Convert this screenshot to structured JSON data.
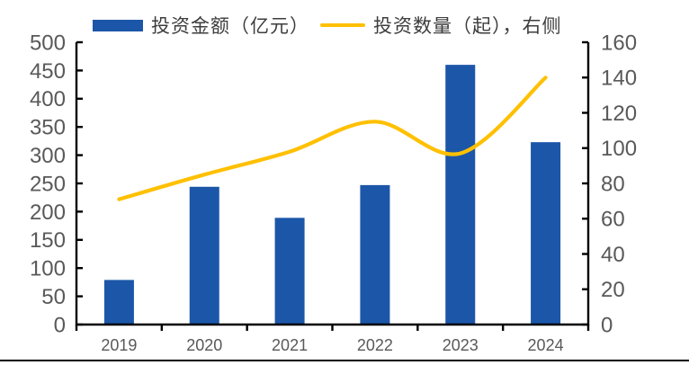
{
  "chart_data": {
    "type": "combo",
    "categories": [
      "2019",
      "2020",
      "2021",
      "2022",
      "2023",
      "2024"
    ],
    "series": [
      {
        "name": "投资金额（亿元）",
        "type": "bar",
        "axis": "left",
        "values": [
          79,
          244,
          189,
          247,
          460,
          323
        ]
      },
      {
        "name": "投资数量（起），右侧",
        "type": "line",
        "axis": "right",
        "values": [
          71,
          85,
          98,
          115,
          97,
          140
        ]
      }
    ],
    "left_axis": {
      "min": 0,
      "max": 500,
      "step": 50
    },
    "right_axis": {
      "min": 0,
      "max": 160,
      "step": 20
    },
    "grid": false,
    "legend_position": "top",
    "colors": {
      "bar": "#1C56A8",
      "line": "#FFC000",
      "axis": "#000000",
      "tick_label": "#595959",
      "legend_text": "#3d3d3d"
    }
  }
}
